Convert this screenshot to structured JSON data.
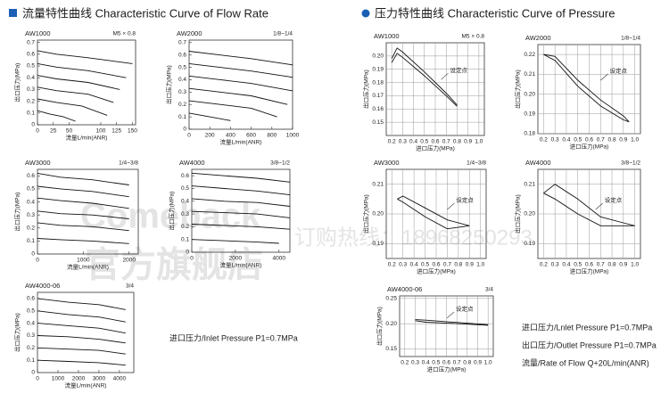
{
  "headers": [
    "流量特性曲线 Characteristic Curve of Flow Rate",
    "压力特性曲线 Characteristic Curve of Pressure"
  ],
  "watermark": [
    "Comeback",
    "官方旗舰店",
    "订购热线：18968250293"
  ],
  "notes": [
    "进口压力/Inlet Pressure P1=0.7MPa",
    "进口压力/Lnlet Pressure P1=0.7MPa",
    "出口压力/Outlet Pressure P1=0.7MPa",
    "流量/Rate of Flow Q+20L/min(ANR)"
  ],
  "chart_data": [
    {
      "type": "line",
      "title": "AW1000",
      "subtitle": "M5 × 0.8",
      "xlabel": "流量L/min(ANR)",
      "ylabel": "出口压力(MPa)",
      "grid": false,
      "xlim": [
        0,
        155
      ],
      "ylim": [
        0,
        0.72
      ],
      "xticks": [
        0,
        25,
        50,
        100,
        125,
        150
      ],
      "yticks": [
        0,
        0.1,
        0.2,
        0.3,
        0.4,
        0.5,
        0.6,
        0.7
      ],
      "series": [
        {
          "color": "#111",
          "x": [
            0,
            30,
            80,
            150
          ],
          "values": [
            0.63,
            0.6,
            0.57,
            0.52
          ]
        },
        {
          "color": "#111",
          "x": [
            0,
            30,
            80,
            140
          ],
          "values": [
            0.52,
            0.49,
            0.46,
            0.4
          ]
        },
        {
          "color": "#111",
          "x": [
            0,
            30,
            80,
            130
          ],
          "values": [
            0.42,
            0.39,
            0.36,
            0.3
          ]
        },
        {
          "color": "#111",
          "x": [
            0,
            30,
            80,
            120
          ],
          "values": [
            0.32,
            0.29,
            0.26,
            0.19
          ]
        },
        {
          "color": "#111",
          "x": [
            0,
            30,
            70,
            110
          ],
          "values": [
            0.22,
            0.19,
            0.16,
            0.08
          ]
        },
        {
          "color": "#111",
          "x": [
            0,
            20,
            40,
            60
          ],
          "values": [
            0.12,
            0.09,
            0.07,
            0.03
          ]
        }
      ]
    },
    {
      "type": "line",
      "title": "AW2000",
      "subtitle": "1/8~1/4",
      "xlabel": "流量L/min(ANR)",
      "ylabel": "出口压力(MPa)",
      "grid": false,
      "xlim": [
        0,
        1000
      ],
      "ylim": [
        0,
        0.72
      ],
      "xticks": [
        0,
        200,
        400,
        600,
        800,
        1000
      ],
      "yticks": [
        0,
        0.1,
        0.2,
        0.3,
        0.4,
        0.5,
        0.6,
        0.7
      ],
      "series": [
        {
          "color": "#111",
          "x": [
            0,
            300,
            600,
            1000
          ],
          "values": [
            0.63,
            0.6,
            0.57,
            0.52
          ]
        },
        {
          "color": "#111",
          "x": [
            0,
            300,
            600,
            1000
          ],
          "values": [
            0.53,
            0.5,
            0.47,
            0.42
          ]
        },
        {
          "color": "#111",
          "x": [
            0,
            300,
            600,
            1000
          ],
          "values": [
            0.43,
            0.4,
            0.37,
            0.31
          ]
        },
        {
          "color": "#111",
          "x": [
            0,
            300,
            600,
            950
          ],
          "values": [
            0.33,
            0.3,
            0.27,
            0.2
          ]
        },
        {
          "color": "#111",
          "x": [
            0,
            300,
            600,
            850
          ],
          "values": [
            0.23,
            0.2,
            0.17,
            0.1
          ]
        },
        {
          "color": "#111",
          "x": [
            0,
            200,
            400
          ],
          "values": [
            0.13,
            0.1,
            0.07
          ]
        }
      ]
    },
    {
      "type": "line",
      "title": "AW3000",
      "subtitle": "1/4~3/8",
      "xlabel": "流量L/min(ANR)",
      "ylabel": "出口压力(MPa)",
      "grid": false,
      "xlim": [
        0,
        2200
      ],
      "ylim": [
        0,
        0.65
      ],
      "xticks": [
        0,
        1000,
        2000
      ],
      "yticks": [
        0,
        0.1,
        0.2,
        0.3,
        0.4,
        0.5,
        0.6
      ],
      "series": [
        {
          "color": "#111",
          "x": [
            0,
            500,
            1200,
            2000
          ],
          "values": [
            0.62,
            0.59,
            0.57,
            0.53
          ]
        },
        {
          "color": "#111",
          "x": [
            0,
            500,
            1200,
            2000
          ],
          "values": [
            0.52,
            0.5,
            0.48,
            0.44
          ]
        },
        {
          "color": "#111",
          "x": [
            0,
            500,
            1200,
            2000
          ],
          "values": [
            0.43,
            0.41,
            0.39,
            0.35
          ]
        },
        {
          "color": "#111",
          "x": [
            0,
            500,
            1200,
            2000
          ],
          "values": [
            0.33,
            0.31,
            0.3,
            0.27
          ]
        },
        {
          "color": "#111",
          "x": [
            0,
            500,
            1200,
            2000
          ],
          "values": [
            0.24,
            0.22,
            0.21,
            0.18
          ]
        },
        {
          "color": "#111",
          "x": [
            0,
            500,
            1200,
            2000
          ],
          "values": [
            0.12,
            0.11,
            0.1,
            0.08
          ]
        }
      ]
    },
    {
      "type": "line",
      "title": "AW4000",
      "subtitle": "3/8~1/2",
      "xlabel": "流量L/min(ANR)",
      "ylabel": "出口压力(MPa)",
      "grid": false,
      "xlim": [
        0,
        4500
      ],
      "ylim": [
        0,
        0.65
      ],
      "xticks": [
        0,
        2000,
        4000
      ],
      "yticks": [
        0,
        0.1,
        0.2,
        0.3,
        0.4,
        0.5,
        0.6
      ],
      "series": [
        {
          "color": "#111",
          "x": [
            0,
            1500,
            3000,
            4500
          ],
          "values": [
            0.62,
            0.6,
            0.58,
            0.55
          ]
        },
        {
          "color": "#111",
          "x": [
            0,
            1500,
            3000,
            4500
          ],
          "values": [
            0.52,
            0.5,
            0.48,
            0.45
          ]
        },
        {
          "color": "#111",
          "x": [
            0,
            1500,
            3000,
            4500
          ],
          "values": [
            0.42,
            0.4,
            0.39,
            0.36
          ]
        },
        {
          "color": "#111",
          "x": [
            0,
            1500,
            3000,
            4500
          ],
          "values": [
            0.32,
            0.31,
            0.3,
            0.27
          ]
        },
        {
          "color": "#111",
          "x": [
            0,
            1500,
            3000,
            4500
          ],
          "values": [
            0.22,
            0.21,
            0.2,
            0.18
          ]
        },
        {
          "color": "#111",
          "x": [
            0,
            1500,
            3000,
            4000
          ],
          "values": [
            0.1,
            0.09,
            0.08,
            0.07
          ]
        }
      ]
    },
    {
      "type": "line",
      "title": "AW4000-06",
      "subtitle": "3/4",
      "xlabel": "流量L/min(ANR)",
      "ylabel": "出口压力(MPa)",
      "grid": false,
      "xlim": [
        0,
        4700
      ],
      "ylim": [
        0,
        0.65
      ],
      "xticks": [
        0,
        1000,
        2000,
        3000,
        4000
      ],
      "yticks": [
        0,
        0.1,
        0.2,
        0.3,
        0.4,
        0.5,
        0.6
      ],
      "series": [
        {
          "color": "#111",
          "x": [
            0,
            1500,
            3000,
            4300
          ],
          "values": [
            0.6,
            0.57,
            0.55,
            0.51
          ]
        },
        {
          "color": "#111",
          "x": [
            0,
            1500,
            3000,
            4300
          ],
          "values": [
            0.5,
            0.47,
            0.45,
            0.41
          ]
        },
        {
          "color": "#111",
          "x": [
            0,
            1500,
            3000,
            4300
          ],
          "values": [
            0.4,
            0.38,
            0.36,
            0.32
          ]
        },
        {
          "color": "#111",
          "x": [
            0,
            1500,
            3000,
            4300
          ],
          "values": [
            0.3,
            0.29,
            0.27,
            0.24
          ]
        },
        {
          "color": "#111",
          "x": [
            0,
            1500,
            3000,
            4300
          ],
          "values": [
            0.2,
            0.19,
            0.18,
            0.15
          ]
        },
        {
          "color": "#111",
          "x": [
            0,
            1500,
            3000,
            4300
          ],
          "values": [
            0.1,
            0.09,
            0.08,
            0.06
          ]
        }
      ]
    },
    {
      "type": "line",
      "title": "AW1000",
      "subtitle": "M5 × 0.8",
      "xlabel": "进口压力(MPa)",
      "ylabel": "出口压力(MPa)",
      "annotation": "设定点",
      "grid": true,
      "xlim": [
        0.15,
        1.05
      ],
      "ylim": [
        0.14,
        0.21
      ],
      "xticks": [
        0.2,
        0.3,
        0.4,
        0.5,
        0.6,
        0.7,
        0.8,
        0.9,
        {
          "value": 1,
          "label": "1.0"
        }
      ],
      "yticks": [
        0.15,
        0.16,
        0.17,
        0.18,
        0.19,
        {
          "value": 0.2,
          "label": "0.20"
        }
      ],
      "series": [
        {
          "color": "#111",
          "x": [
            0.2,
            0.25,
            0.3,
            0.5,
            0.7,
            0.8
          ],
          "values": [
            0.198,
            0.206,
            0.203,
            0.188,
            0.172,
            0.163
          ]
        },
        {
          "color": "#111",
          "x": [
            0.2,
            0.25,
            0.3,
            0.5,
            0.7,
            0.8
          ],
          "values": [
            0.195,
            0.202,
            0.199,
            0.185,
            0.17,
            0.162
          ]
        }
      ]
    },
    {
      "type": "line",
      "title": "AW2000",
      "subtitle": "1/8~1/4",
      "xlabel": "进口压力(MPa)",
      "ylabel": "出口压力(MPa)",
      "annotation": "设定点",
      "grid": true,
      "xlim": [
        0.15,
        1.05
      ],
      "ylim": [
        0.18,
        0.225
      ],
      "xticks": [
        0.2,
        0.3,
        0.4,
        0.5,
        0.6,
        0.7,
        0.8,
        0.9,
        {
          "value": 1,
          "label": "1.0"
        }
      ],
      "yticks": [
        0.18,
        0.19,
        {
          "value": 0.2,
          "label": "0.20"
        },
        0.21,
        0.22
      ],
      "series": [
        {
          "color": "#111",
          "x": [
            0.2,
            0.3,
            0.5,
            0.7,
            0.9,
            0.95
          ],
          "values": [
            0.22,
            0.219,
            0.207,
            0.197,
            0.189,
            0.186
          ]
        },
        {
          "color": "#111",
          "x": [
            0.2,
            0.3,
            0.5,
            0.7,
            0.9,
            0.95
          ],
          "values": [
            0.22,
            0.217,
            0.204,
            0.194,
            0.187,
            0.186
          ]
        }
      ]
    },
    {
      "type": "line",
      "title": "AW3000",
      "subtitle": "1/4~3/8",
      "xlabel": "进口压力(MPa)",
      "ylabel": "出口压力(MPa)",
      "annotation": "设定点",
      "grid": true,
      "xlim": [
        0.15,
        1.05
      ],
      "ylim": [
        0.185,
        0.215
      ],
      "xticks": [
        0.2,
        0.3,
        0.4,
        0.5,
        0.6,
        0.7,
        0.8,
        0.9,
        {
          "value": 1,
          "label": "1.0"
        }
      ],
      "yticks": [
        0.19,
        {
          "value": 0.2,
          "label": "0.20"
        },
        0.21
      ],
      "series": [
        {
          "color": "#111",
          "x": [
            0.25,
            0.3,
            0.5,
            0.7,
            0.9
          ],
          "values": [
            0.205,
            0.206,
            0.202,
            0.198,
            0.196
          ]
        },
        {
          "color": "#111",
          "x": [
            0.25,
            0.3,
            0.5,
            0.7,
            0.9
          ],
          "values": [
            0.205,
            0.204,
            0.199,
            0.195,
            0.196
          ]
        }
      ]
    },
    {
      "type": "line",
      "title": "AW4000",
      "subtitle": "3/8~1/2",
      "xlabel": "进口压力(MPa)",
      "ylabel": "出口压力(MPa)",
      "annotation": "设定点",
      "grid": true,
      "xlim": [
        0.15,
        1.05
      ],
      "ylim": [
        0.185,
        0.215
      ],
      "xticks": [
        0.2,
        0.3,
        0.4,
        0.5,
        0.6,
        0.7,
        0.8,
        0.9,
        {
          "value": 1,
          "label": "1.0"
        }
      ],
      "yticks": [
        0.19,
        {
          "value": 0.2,
          "label": "0.20"
        },
        0.21
      ],
      "series": [
        {
          "color": "#111",
          "x": [
            0.2,
            0.3,
            0.5,
            0.7,
            0.9,
            1.0
          ],
          "values": [
            0.207,
            0.21,
            0.205,
            0.199,
            0.197,
            0.196
          ]
        },
        {
          "color": "#111",
          "x": [
            0.2,
            0.3,
            0.5,
            0.7,
            0.9,
            1.0
          ],
          "values": [
            0.207,
            0.205,
            0.2,
            0.196,
            0.196,
            0.196
          ]
        }
      ]
    },
    {
      "type": "line",
      "title": "AW4000-06",
      "subtitle": "3/4",
      "xlabel": "进口压力(MPa)",
      "ylabel": "出口压力(MPa)",
      "annotation": "设定点",
      "grid": true,
      "xlim": [
        0.15,
        1.05
      ],
      "ylim": [
        0.135,
        0.255
      ],
      "xticks": [
        0.2,
        0.3,
        0.4,
        0.5,
        0.6,
        0.7,
        0.8,
        0.9,
        {
          "value": 1,
          "label": "1.0"
        }
      ],
      "yticks": [
        0.15,
        {
          "value": 0.2,
          "label": "0.20"
        },
        0.25
      ],
      "series": [
        {
          "color": "#111",
          "x": [
            0.3,
            0.4,
            0.6,
            0.8,
            1.0
          ],
          "values": [
            0.208,
            0.207,
            0.204,
            0.201,
            0.198
          ]
        },
        {
          "color": "#111",
          "x": [
            0.3,
            0.4,
            0.6,
            0.8,
            1.0
          ],
          "values": [
            0.206,
            0.203,
            0.201,
            0.199,
            0.197
          ]
        }
      ]
    }
  ]
}
